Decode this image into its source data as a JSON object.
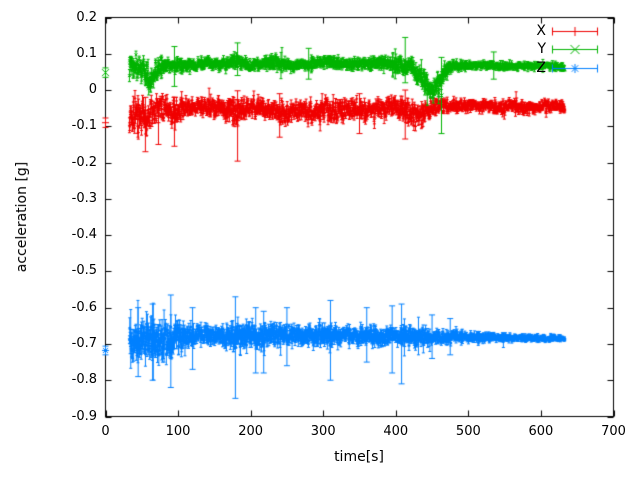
{
  "chart_data": {
    "type": "scatter",
    "style": "points-with-errorbars",
    "title": "",
    "xlabel": "time[s]",
    "ylabel": "acceleration [g]",
    "xlim": [
      0,
      700
    ],
    "ylim": [
      -0.9,
      0.2
    ],
    "grid": false,
    "legend_position": "top-right-inside",
    "background": "#ffffff",
    "axis_color": "#000000",
    "xtick_values": [
      0,
      100,
      200,
      300,
      400,
      500,
      600,
      700
    ],
    "xtick_labels": [
      "0",
      "100",
      "200",
      "300",
      "400",
      "500",
      "600",
      "700"
    ],
    "ytick_values": [
      0.2,
      0.1,
      0,
      -0.1,
      -0.2,
      -0.3,
      -0.4,
      -0.5,
      -0.6,
      -0.7,
      -0.8,
      -0.9
    ],
    "ytick_labels": [
      "0.2",
      "0.1",
      "0",
      "-0.1",
      "-0.2",
      "-0.3",
      "-0.4",
      "-0.5",
      "-0.6",
      "-0.7",
      "-0.8",
      "-0.9"
    ],
    "series": [
      {
        "name": "X",
        "color": "#f00000",
        "marker": "plus",
        "start_point": {
          "t": 0,
          "v": -0.09,
          "err": 0.013
        },
        "t_range": [
          33,
          633
        ],
        "profile": [
          [
            33,
            -0.08,
            0.055,
            0.02
          ],
          [
            45,
            -0.065,
            0.06,
            0.02
          ],
          [
            57,
            -0.085,
            0.055,
            0.018
          ],
          [
            68,
            -0.055,
            0.04,
            0.012
          ],
          [
            80,
            -0.05,
            0.035,
            0.012
          ],
          [
            95,
            -0.06,
            0.045,
            0.015
          ],
          [
            110,
            -0.048,
            0.028,
            0.01
          ],
          [
            140,
            -0.045,
            0.025,
            0.01
          ],
          [
            165,
            -0.052,
            0.03,
            0.012
          ],
          [
            183,
            -0.06,
            0.038,
            0.015
          ],
          [
            205,
            -0.048,
            0.028,
            0.01
          ],
          [
            225,
            -0.055,
            0.032,
            0.012
          ],
          [
            243,
            -0.062,
            0.035,
            0.012
          ],
          [
            262,
            -0.05,
            0.028,
            0.01
          ],
          [
            288,
            -0.065,
            0.035,
            0.012
          ],
          [
            303,
            -0.052,
            0.028,
            0.01
          ],
          [
            318,
            -0.068,
            0.035,
            0.012
          ],
          [
            332,
            -0.05,
            0.028,
            0.01
          ],
          [
            348,
            -0.052,
            0.03,
            0.01
          ],
          [
            368,
            -0.062,
            0.035,
            0.012
          ],
          [
            392,
            -0.045,
            0.025,
            0.01
          ],
          [
            412,
            -0.055,
            0.035,
            0.015
          ],
          [
            428,
            -0.075,
            0.04,
            0.015
          ],
          [
            442,
            -0.06,
            0.03,
            0.012
          ],
          [
            455,
            -0.045,
            0.022,
            0.008
          ],
          [
            480,
            -0.043,
            0.02,
            0.008
          ],
          [
            520,
            -0.042,
            0.018,
            0.007
          ],
          [
            545,
            -0.05,
            0.022,
            0.008
          ],
          [
            560,
            -0.042,
            0.018,
            0.007
          ],
          [
            575,
            -0.05,
            0.02,
            0.008
          ],
          [
            600,
            -0.044,
            0.018,
            0.006
          ],
          [
            633,
            -0.046,
            0.018,
            0.006
          ]
        ],
        "outlier_errorbars": [
          [
            55,
            -0.17,
            -0.02
          ],
          [
            73,
            -0.15,
            -0.03
          ],
          [
            95,
            -0.155,
            -0.02
          ],
          [
            182,
            -0.196,
            -0.002
          ],
          [
            240,
            -0.13,
            -0.01
          ],
          [
            350,
            -0.12,
            -0.01
          ],
          [
            413,
            -0.135,
            0.0
          ]
        ]
      },
      {
        "name": "Y",
        "color": "#00b400",
        "marker": "cross",
        "start_point": {
          "t": 0,
          "v": 0.048,
          "err": 0.013
        },
        "t_range": [
          33,
          633
        ],
        "profile": [
          [
            33,
            0.06,
            0.045,
            0.015
          ],
          [
            45,
            0.065,
            0.04,
            0.012
          ],
          [
            55,
            0.045,
            0.045,
            0.015
          ],
          [
            63,
            0.025,
            0.045,
            0.015
          ],
          [
            72,
            0.06,
            0.03,
            0.01
          ],
          [
            85,
            0.07,
            0.022,
            0.01
          ],
          [
            110,
            0.065,
            0.02,
            0.008
          ],
          [
            135,
            0.075,
            0.016,
            0.008
          ],
          [
            160,
            0.072,
            0.016,
            0.008
          ],
          [
            178,
            0.082,
            0.02,
            0.01
          ],
          [
            195,
            0.07,
            0.015,
            0.008
          ],
          [
            215,
            0.072,
            0.018,
            0.008
          ],
          [
            235,
            0.078,
            0.02,
            0.01
          ],
          [
            258,
            0.068,
            0.016,
            0.008
          ],
          [
            280,
            0.07,
            0.015,
            0.008
          ],
          [
            305,
            0.08,
            0.016,
            0.008
          ],
          [
            330,
            0.07,
            0.015,
            0.008
          ],
          [
            355,
            0.072,
            0.016,
            0.008
          ],
          [
            378,
            0.076,
            0.018,
            0.009
          ],
          [
            400,
            0.07,
            0.02,
            0.012
          ],
          [
            420,
            0.065,
            0.022,
            0.012
          ],
          [
            437,
            0.03,
            0.028,
            0.014
          ],
          [
            450,
            -0.005,
            0.025,
            0.014
          ],
          [
            458,
            0.01,
            0.03,
            0.016
          ],
          [
            466,
            0.05,
            0.022,
            0.012
          ],
          [
            478,
            0.066,
            0.014,
            0.007
          ],
          [
            510,
            0.069,
            0.012,
            0.006
          ],
          [
            560,
            0.066,
            0.011,
            0.006
          ],
          [
            600,
            0.068,
            0.011,
            0.006
          ],
          [
            633,
            0.064,
            0.011,
            0.006
          ]
        ],
        "outlier_errorbars": [
          [
            95,
            0.01,
            0.12
          ],
          [
            182,
            0.04,
            0.13
          ],
          [
            280,
            0.03,
            0.115
          ],
          [
            413,
            0.02,
            0.145
          ],
          [
            463,
            -0.12,
            0.09
          ],
          [
            535,
            0.03,
            0.105
          ]
        ]
      },
      {
        "name": "Z",
        "color": "#0080ff",
        "marker": "star",
        "start_point": {
          "t": 0,
          "v": -0.718,
          "err": 0.012
        },
        "t_range": [
          33,
          633
        ],
        "profile": [
          [
            33,
            -0.69,
            0.05,
            0.025
          ],
          [
            45,
            -0.685,
            0.06,
            0.03
          ],
          [
            60,
            -0.685,
            0.058,
            0.03
          ],
          [
            75,
            -0.688,
            0.055,
            0.028
          ],
          [
            90,
            -0.685,
            0.05,
            0.03
          ],
          [
            105,
            -0.68,
            0.04,
            0.02
          ],
          [
            120,
            -0.678,
            0.028,
            0.015
          ],
          [
            140,
            -0.675,
            0.024,
            0.012
          ],
          [
            160,
            -0.678,
            0.026,
            0.014
          ],
          [
            175,
            -0.68,
            0.04,
            0.022
          ],
          [
            190,
            -0.676,
            0.035,
            0.02
          ],
          [
            210,
            -0.68,
            0.035,
            0.02
          ],
          [
            230,
            -0.676,
            0.03,
            0.016
          ],
          [
            255,
            -0.675,
            0.024,
            0.012
          ],
          [
            280,
            -0.68,
            0.028,
            0.014
          ],
          [
            305,
            -0.676,
            0.032,
            0.018
          ],
          [
            330,
            -0.675,
            0.024,
            0.012
          ],
          [
            355,
            -0.68,
            0.028,
            0.015
          ],
          [
            380,
            -0.676,
            0.03,
            0.016
          ],
          [
            405,
            -0.68,
            0.026,
            0.013
          ],
          [
            425,
            -0.68,
            0.028,
            0.014
          ],
          [
            450,
            -0.68,
            0.02,
            0.01
          ],
          [
            475,
            -0.681,
            0.017,
            0.008
          ],
          [
            505,
            -0.682,
            0.014,
            0.007
          ],
          [
            540,
            -0.683,
            0.012,
            0.006
          ],
          [
            580,
            -0.684,
            0.01,
            0.005
          ],
          [
            633,
            -0.684,
            0.008,
            0.004
          ]
        ],
        "outlier_errorbars": [
          [
            45,
            -0.79,
            -0.6
          ],
          [
            65,
            -0.8,
            -0.59
          ],
          [
            90,
            -0.82,
            -0.565
          ],
          [
            120,
            -0.77,
            -0.6
          ],
          [
            179,
            -0.85,
            -0.57
          ],
          [
            207,
            -0.78,
            -0.6
          ],
          [
            218,
            -0.78,
            -0.61
          ],
          [
            250,
            -0.76,
            -0.6
          ],
          [
            310,
            -0.8,
            -0.58
          ],
          [
            360,
            -0.75,
            -0.6
          ],
          [
            395,
            -0.78,
            -0.595
          ],
          [
            408,
            -0.81,
            -0.59
          ],
          [
            450,
            -0.74,
            -0.62
          ],
          [
            475,
            -0.73,
            -0.63
          ]
        ]
      }
    ]
  }
}
